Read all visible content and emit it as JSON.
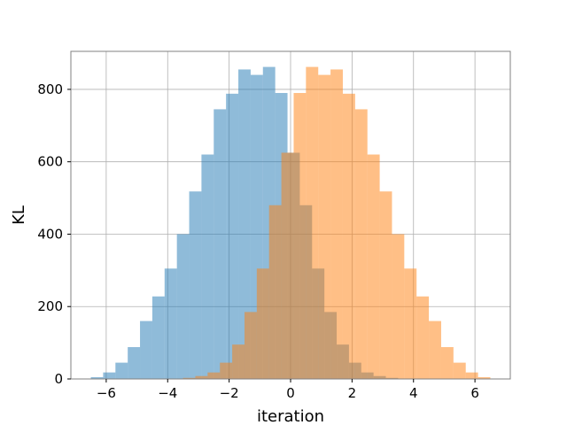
{
  "chart_data": {
    "type": "bar",
    "subtype": "overlapping-histogram",
    "xlabel": "iteration",
    "ylabel": "KL",
    "xlim": [
      -7.15,
      7.15
    ],
    "ylim": [
      0,
      905
    ],
    "xticks": [
      -6,
      -4,
      -2,
      0,
      2,
      4,
      6
    ],
    "xtick_labels": [
      "−6",
      "−4",
      "−2",
      "0",
      "2",
      "4",
      "6"
    ],
    "yticks": [
      0,
      200,
      400,
      600,
      800
    ],
    "ytick_labels": [
      "0",
      "200",
      "400",
      "600",
      "800"
    ],
    "grid": true,
    "legend": "none",
    "series": [
      {
        "color": "#1f77b4",
        "opacity": 0.5,
        "bin_edges": [
          -6.5,
          -6.1,
          -5.7,
          -5.3,
          -4.9,
          -4.5,
          -4.1,
          -3.7,
          -3.3,
          -2.9,
          -2.5,
          -2.1,
          -1.7,
          -1.3,
          -0.9,
          -0.5,
          -0.1,
          0.3,
          0.7,
          1.1,
          1.5,
          1.9,
          2.3,
          2.7,
          3.1,
          3.5
        ],
        "values": [
          5,
          18,
          45,
          88,
          160,
          228,
          305,
          400,
          518,
          620,
          745,
          788,
          855,
          840,
          862,
          790,
          625,
          480,
          305,
          185,
          95,
          45,
          18,
          8,
          3
        ]
      },
      {
        "color": "#ff7f0e",
        "opacity": 0.5,
        "bin_edges": [
          -3.5,
          -3.1,
          -2.7,
          -2.3,
          -1.9,
          -1.5,
          -1.1,
          -0.7,
          -0.3,
          0.1,
          0.5,
          0.9,
          1.3,
          1.7,
          2.1,
          2.5,
          2.9,
          3.3,
          3.7,
          4.1,
          4.5,
          4.9,
          5.3,
          5.7,
          6.1,
          6.5
        ],
        "values": [
          3,
          8,
          18,
          45,
          95,
          185,
          305,
          480,
          625,
          790,
          862,
          840,
          855,
          788,
          745,
          620,
          518,
          400,
          305,
          228,
          160,
          88,
          45,
          18,
          5
        ]
      }
    ]
  }
}
